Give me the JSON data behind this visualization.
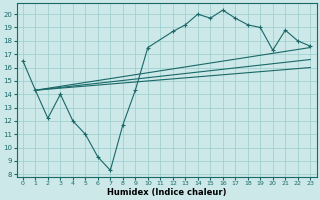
{
  "xlabel": "Humidex (Indice chaleur)",
  "xlim_min": -0.5,
  "xlim_max": 23.5,
  "ylim_min": 7.8,
  "ylim_max": 20.8,
  "yticks": [
    8,
    9,
    10,
    11,
    12,
    13,
    14,
    15,
    16,
    17,
    18,
    19,
    20
  ],
  "xticks": [
    0,
    1,
    2,
    3,
    4,
    5,
    6,
    7,
    8,
    9,
    10,
    11,
    12,
    13,
    14,
    15,
    16,
    17,
    18,
    19,
    20,
    21,
    22,
    23
  ],
  "bg_color": "#cce8e8",
  "grid_color": "#99cccc",
  "line_color": "#1a6868",
  "zigzag_x": [
    0,
    1,
    2,
    3,
    4,
    5,
    6,
    7,
    8,
    9,
    10,
    12,
    13,
    14,
    15,
    16,
    17,
    18,
    19,
    20,
    21,
    22,
    23
  ],
  "zigzag_y": [
    16.5,
    14.3,
    12.2,
    14.0,
    12.0,
    11.0,
    9.3,
    8.3,
    11.7,
    14.3,
    17.5,
    18.7,
    19.2,
    20.0,
    19.7,
    20.3,
    19.7,
    19.2,
    19.0,
    17.3,
    18.8,
    18.0,
    17.6
  ],
  "trend1_x": [
    1,
    23
  ],
  "trend1_y": [
    14.3,
    17.5
  ],
  "trend2_x": [
    1,
    23
  ],
  "trend2_y": [
    14.3,
    16.6
  ],
  "trend3_x": [
    1,
    23
  ],
  "trend3_y": [
    14.3,
    16.0
  ]
}
